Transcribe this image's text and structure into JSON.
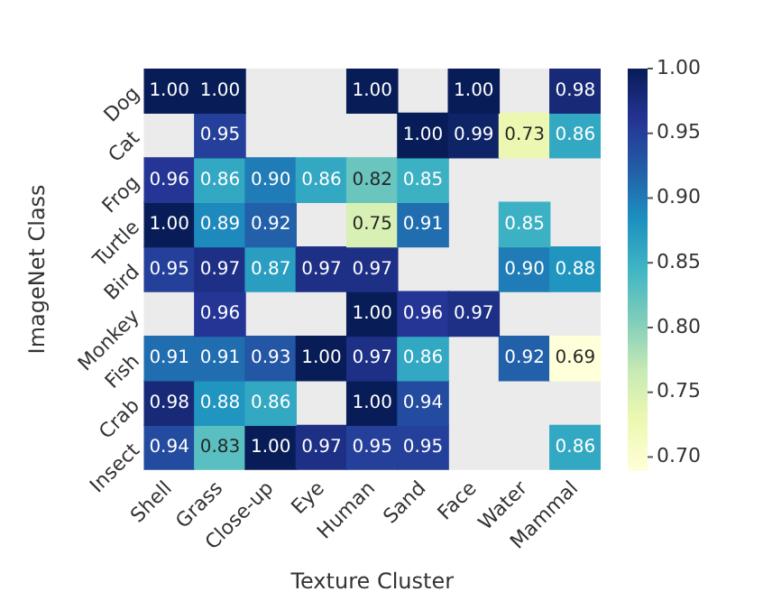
{
  "chart_data": {
    "type": "heatmap",
    "xlabel": "Texture Cluster",
    "ylabel": "ImageNet Class",
    "categories": [
      "Shell",
      "Grass",
      "Close-up",
      "Eye",
      "Human",
      "Sand",
      "Face",
      "Water",
      "Mammal"
    ],
    "y_categories": [
      "Dog",
      "Cat",
      "Frog",
      "Turtle",
      "Bird",
      "Monkey",
      "Fish",
      "Crab",
      "Insect"
    ],
    "cells": [
      [
        1.0,
        1.0,
        null,
        null,
        1.0,
        null,
        1.0,
        null,
        0.98
      ],
      [
        null,
        0.95,
        null,
        null,
        null,
        1.0,
        0.99,
        0.73,
        0.86
      ],
      [
        0.96,
        0.86,
        0.9,
        0.86,
        0.82,
        0.85,
        null,
        null,
        null
      ],
      [
        1.0,
        0.89,
        0.92,
        null,
        0.75,
        0.91,
        null,
        0.85,
        null
      ],
      [
        0.95,
        0.97,
        0.87,
        0.97,
        0.97,
        null,
        null,
        0.9,
        0.88
      ],
      [
        null,
        0.96,
        null,
        null,
        1.0,
        0.96,
        0.97,
        null,
        null
      ],
      [
        0.91,
        0.91,
        0.93,
        1.0,
        0.97,
        0.86,
        null,
        0.92,
        0.69
      ],
      [
        0.98,
        0.88,
        0.86,
        null,
        1.0,
        0.94,
        null,
        null,
        null
      ],
      [
        0.94,
        0.83,
        1.0,
        0.97,
        0.95,
        0.95,
        null,
        null,
        0.86
      ]
    ],
    "cell_labels": [
      [
        "1.00",
        "1.00",
        null,
        null,
        "1.00",
        null,
        "1.00",
        null,
        "0.98"
      ],
      [
        null,
        "0.95",
        null,
        null,
        null,
        "1.00",
        "0.99",
        "0.73",
        "0.86"
      ],
      [
        "0.96",
        "0.86",
        "0.90",
        "0.86",
        "0.82",
        "0.85",
        null,
        null,
        null
      ],
      [
        "1.00",
        "0.89",
        "0.92",
        null,
        "0.75",
        "0.91",
        null,
        "0.85",
        null
      ],
      [
        "0.95",
        "0.97",
        "0.87",
        "0.97",
        "0.97",
        null,
        null,
        "0.90",
        "0.88"
      ],
      [
        null,
        "0.96",
        null,
        null,
        "1.00",
        "0.96",
        "0.97",
        null,
        null
      ],
      [
        "0.91",
        "0.91",
        "0.93",
        "1.00",
        "0.97",
        "0.86",
        null,
        "0.92",
        "0.69"
      ],
      [
        "0.98",
        "0.88",
        "0.86",
        null,
        "1.00",
        "0.94",
        null,
        null,
        null
      ],
      [
        "0.94",
        "0.83",
        "1.00",
        "0.97",
        "0.95",
        "0.95",
        null,
        null,
        "0.86"
      ]
    ],
    "clim": [
      0.69,
      1.0
    ],
    "cticks": [
      {
        "value": 0.7,
        "label": "0.70"
      },
      {
        "value": 0.75,
        "label": "0.75"
      },
      {
        "value": 0.8,
        "label": "0.80"
      },
      {
        "value": 0.85,
        "label": "0.85"
      },
      {
        "value": 0.9,
        "label": "0.90"
      },
      {
        "value": 0.95,
        "label": "0.95"
      },
      {
        "value": 1.0,
        "label": "1.00"
      }
    ],
    "grid": false,
    "legend": false
  }
}
